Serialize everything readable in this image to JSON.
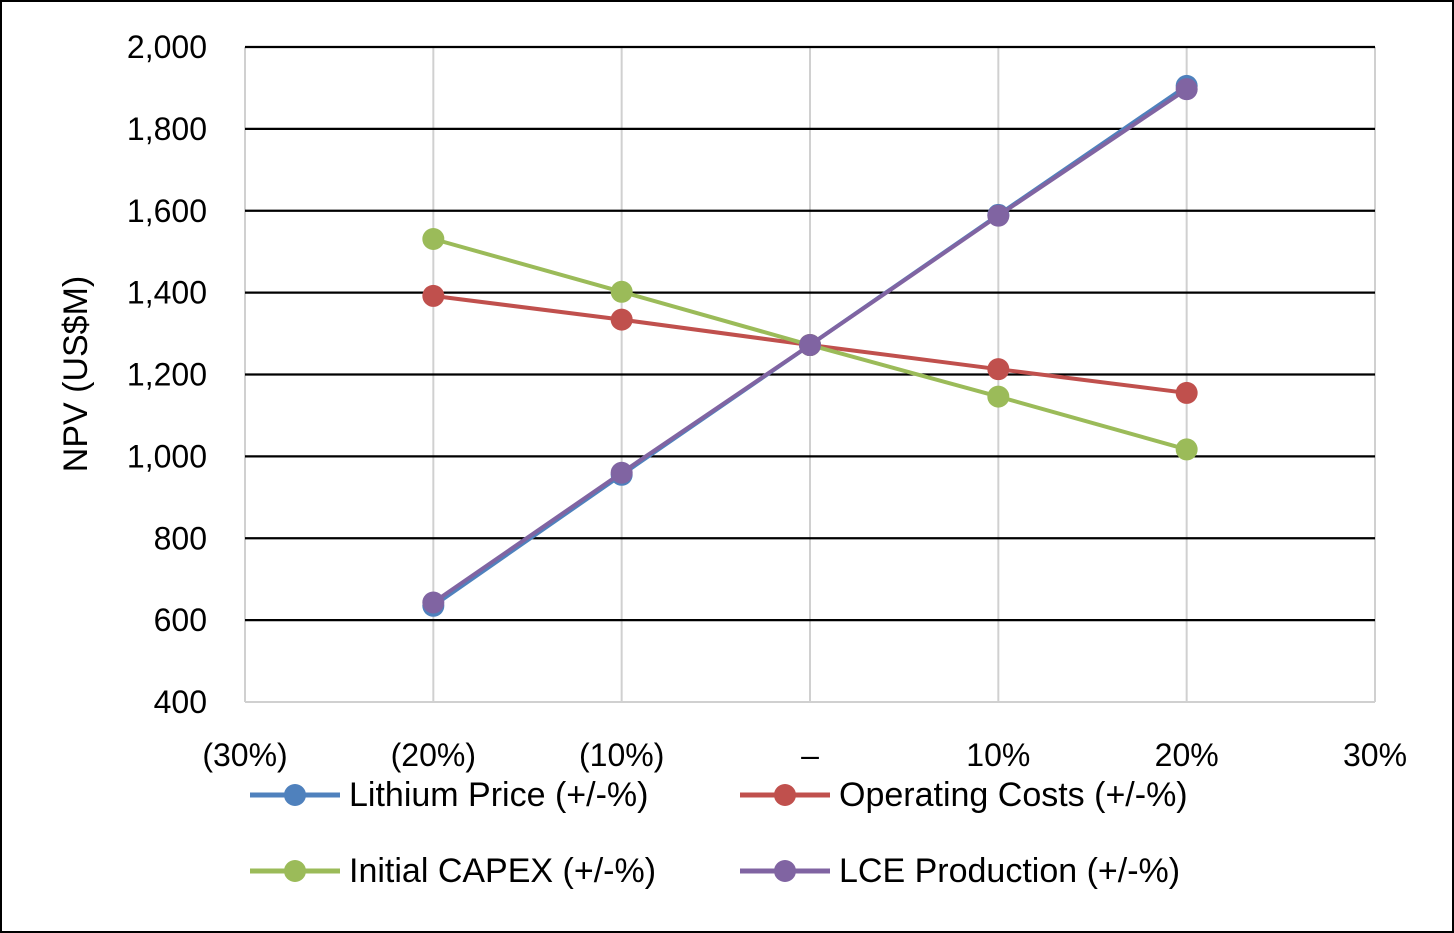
{
  "chart_data": {
    "type": "line",
    "title": "",
    "xlabel": "",
    "ylabel": "NPV (US$M)",
    "xlim": [
      -30,
      30
    ],
    "ylim": [
      400,
      2000
    ],
    "x_ticks": [
      {
        "value": -30,
        "label": "(30%)"
      },
      {
        "value": -20,
        "label": "(20%)"
      },
      {
        "value": -10,
        "label": "(10%)"
      },
      {
        "value": 0,
        "label": "–"
      },
      {
        "value": 10,
        "label": "10%"
      },
      {
        "value": 20,
        "label": "20%"
      },
      {
        "value": 30,
        "label": "30%"
      }
    ],
    "y_ticks": [
      {
        "value": 400,
        "label": "400"
      },
      {
        "value": 600,
        "label": "600"
      },
      {
        "value": 800,
        "label": "800"
      },
      {
        "value": 1000,
        "label": "1,000"
      },
      {
        "value": 1200,
        "label": "1,200"
      },
      {
        "value": 1400,
        "label": "1,400"
      },
      {
        "value": 1600,
        "label": "1,600"
      },
      {
        "value": 1800,
        "label": "1,800"
      },
      {
        "value": 2000,
        "label": "2,000"
      }
    ],
    "grid": {
      "horizontal": true,
      "vertical": true
    },
    "legend_position": "bottom",
    "x": [
      -20,
      -10,
      0,
      10,
      20
    ],
    "series": [
      {
        "name": "Lithium Price (+/-%)",
        "color": "#4F81BD",
        "values": [
          635,
          955,
          1272,
          1590,
          1905
        ]
      },
      {
        "name": "Operating Costs (+/-%)",
        "color": "#C0504D",
        "values": [
          1392,
          1334,
          1272,
          1213,
          1155
        ]
      },
      {
        "name": "Initial CAPEX (+/-%)",
        "color": "#9BBB59",
        "values": [
          1531,
          1402,
          1272,
          1146,
          1017
        ]
      },
      {
        "name": "LCE Production (+/-%)",
        "color": "#8064A2",
        "values": [
          643,
          960,
          1272,
          1588,
          1897
        ]
      }
    ]
  }
}
